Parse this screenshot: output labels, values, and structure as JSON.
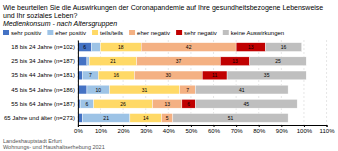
{
  "chart_data": {
    "type": "bar",
    "orientation": "horizontal",
    "stacked": true,
    "title": "Wie beurteilen Sie die Auswirkungen der Coronapandemie auf Ihre gesundheitsbezogene Lebensweise und Ihr soziales Leben?",
    "subtitle": "Medienkonsum - nach Altersgruppen",
    "categories": [
      "18 bis 24 Jahre (n=102)",
      "25 bis 34 Jahre (n=187)",
      "35 bis 44 Jahre (n=181)",
      "45 bis 54 Jahre (n=186)",
      "55 bis 64 Jahre (n=187)",
      "65 Jahre und älter (n=273)"
    ],
    "series": [
      {
        "name": "sehr positiv",
        "color": "#4472c4",
        "values": [
          6,
          4,
          2,
          4,
          1,
          2
        ],
        "value_labels": [
          "6",
          null,
          null,
          null,
          null,
          null
        ]
      },
      {
        "name": "eher positiv",
        "color": "#9dc3e6",
        "values": [
          4,
          1,
          7,
          10,
          6,
          21
        ],
        "value_labels": [
          null,
          null,
          "7",
          "10",
          "6",
          "21"
        ]
      },
      {
        "name": "teils/teils",
        "color": "#ffd966",
        "values": [
          18,
          21,
          16,
          31,
          26,
          14
        ],
        "value_labels": [
          "18",
          "21",
          "16",
          "31",
          "26",
          "14"
        ]
      },
      {
        "name": "eher negativ",
        "color": "#f4b183",
        "values": [
          42,
          37,
          30,
          7,
          13,
          5
        ],
        "value_labels": [
          "42",
          "37",
          "30",
          "7",
          "13",
          "5"
        ]
      },
      {
        "name": "sehr negativ",
        "color": "#c00000",
        "values": [
          13,
          13,
          11,
          0,
          6,
          0
        ],
        "value_labels": [
          "13",
          "13",
          "11",
          null,
          "6",
          null
        ]
      },
      {
        "name": "keine Auswirkungen",
        "color": "#bfbfbf",
        "values": [
          16,
          25,
          35,
          41,
          45,
          51
        ],
        "value_labels": [
          "16",
          "25",
          "35",
          "41",
          "45",
          "51"
        ]
      }
    ],
    "xlim": [
      0,
      110
    ],
    "xticks": [
      {
        "value": 0,
        "label": "0%"
      },
      {
        "value": 10,
        "label": "10%"
      },
      {
        "value": 20,
        "label": "20%"
      },
      {
        "value": 30,
        "label": "30%"
      },
      {
        "value": 40,
        "label": "40%"
      },
      {
        "value": 50,
        "label": "50%"
      },
      {
        "value": 60,
        "label": "60%"
      },
      {
        "value": 70,
        "label": "70%"
      },
      {
        "value": 80,
        "label": "80%"
      },
      {
        "value": 90,
        "label": "90%"
      },
      {
        "value": 100,
        "label": "100%"
      },
      {
        "value": 110,
        "label": "110%"
      }
    ],
    "grid": true,
    "legend": "top",
    "data_labels": true,
    "annotations": [
      "Landeshauptstadt Erfurt",
      "Wohnungs- und Haushaltserhebung 2021"
    ]
  }
}
